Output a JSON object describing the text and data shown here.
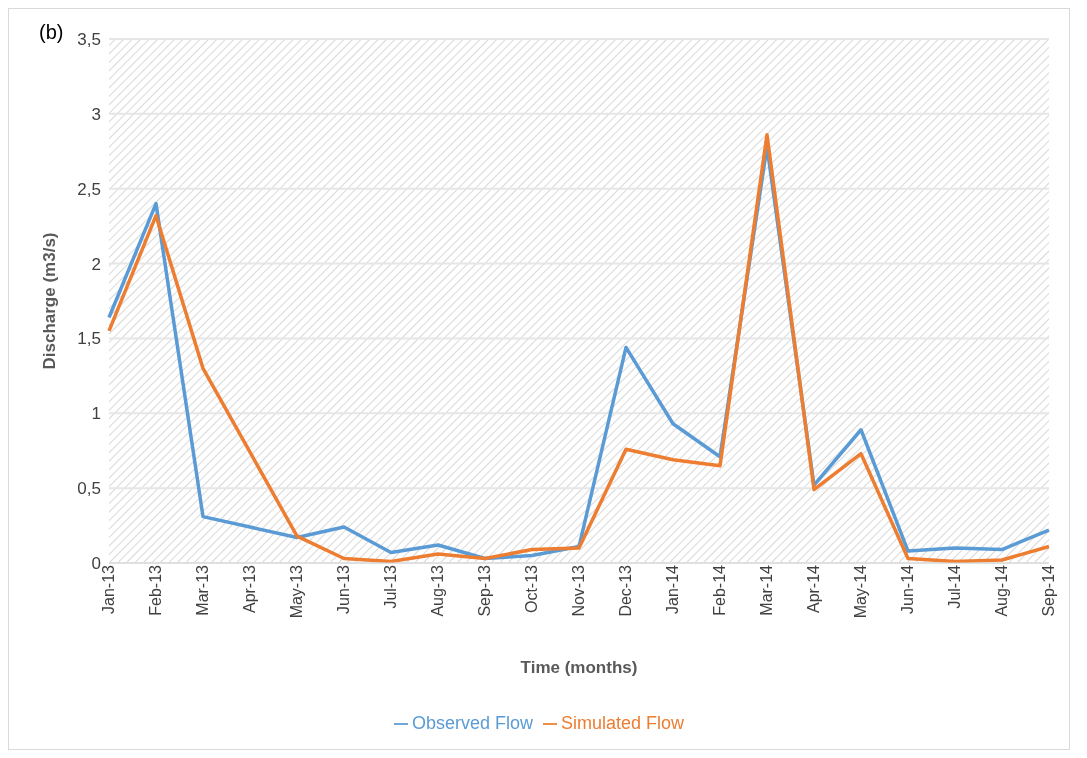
{
  "chart_data": {
    "type": "line",
    "xlabel": "Time (months)",
    "ylabel": "Discharge (m3/s)",
    "annotations": [
      "(b)"
    ],
    "categories": [
      "Jan-13",
      "Feb-13",
      "Mar-13",
      "Apr-13",
      "May-13",
      "Jun-13",
      "Jul-13",
      "Aug-13",
      "Sep-13",
      "Oct-13",
      "Nov-13",
      "Dec-13",
      "Jan-14",
      "Feb-14",
      "Mar-14",
      "Apr-14",
      "May-14",
      "Jun-14",
      "Jul-14",
      "Aug-14",
      "Sep-14"
    ],
    "series": [
      {
        "name": "Observed Flow",
        "color": "#5b9bd5",
        "values": [
          1.64,
          2.4,
          0.31,
          0.24,
          0.17,
          0.24,
          0.07,
          0.12,
          0.03,
          0.05,
          0.11,
          1.44,
          0.93,
          0.71,
          2.78,
          0.52,
          0.89,
          0.08,
          0.1,
          0.09,
          0.22
        ]
      },
      {
        "name": "Simulated Flow",
        "color": "#ed7d31",
        "values": [
          1.55,
          2.32,
          1.3,
          0.74,
          0.18,
          0.03,
          0.01,
          0.06,
          0.03,
          0.09,
          0.1,
          0.76,
          0.69,
          0.65,
          2.86,
          0.49,
          0.73,
          0.03,
          0.01,
          0.02,
          0.11
        ]
      }
    ],
    "ylim": [
      0,
      3.5
    ],
    "yticks": [
      0,
      {
        "value": 0.5,
        "label": "0,5"
      },
      1,
      {
        "value": 1.5,
        "label": "1,5"
      },
      2,
      {
        "value": 2.5,
        "label": "2,5"
      },
      3,
      {
        "value": 3.5,
        "label": "3,5"
      }
    ],
    "grid": "y",
    "legend": "bottom",
    "marker": "none",
    "line_style": "solid"
  }
}
